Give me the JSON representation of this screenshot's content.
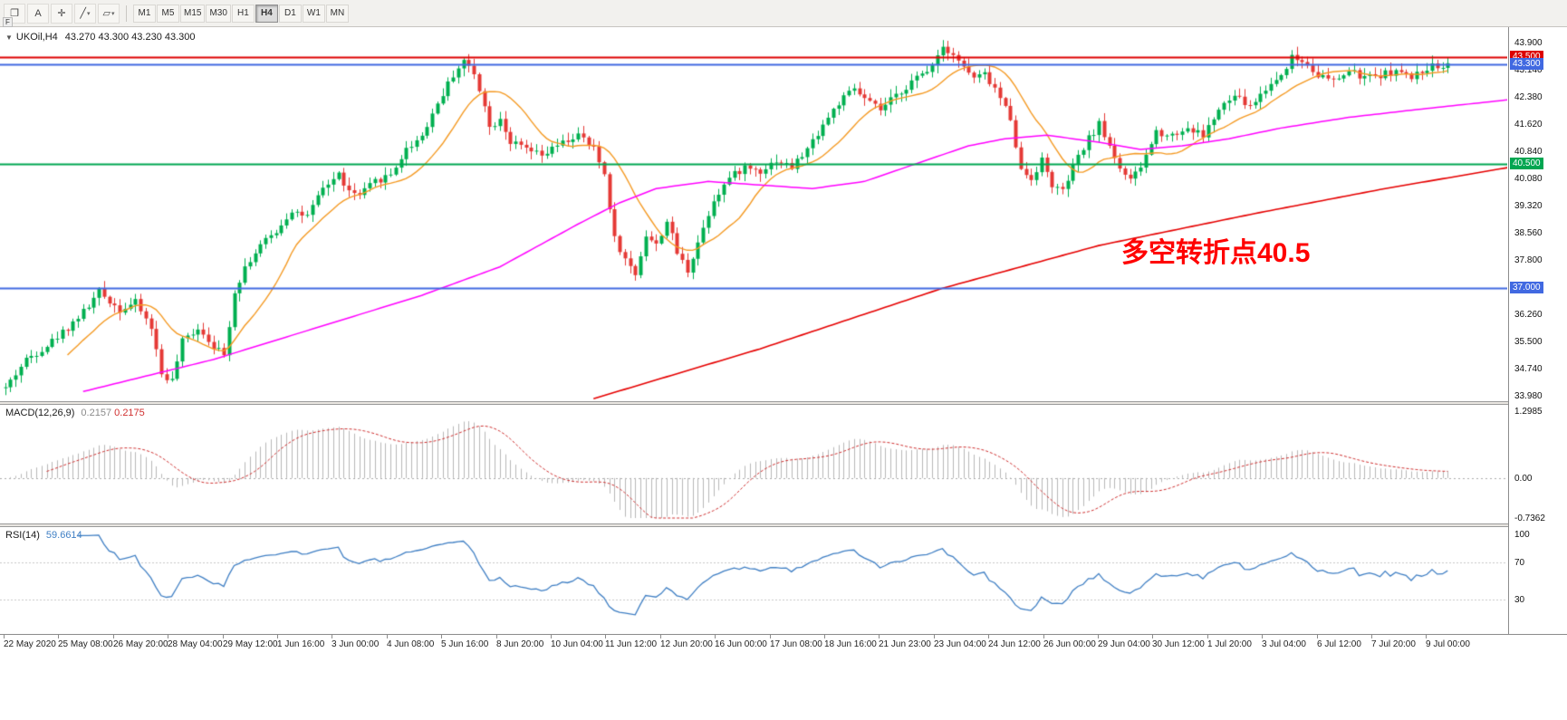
{
  "icons": {
    "cascade": "❐",
    "crosshair": "✛",
    "trendline": "╱",
    "shapes": "▱",
    "caret": "▾",
    "chart_arrow": "▼"
  },
  "toolbar": {
    "annotate_label": "A",
    "f_label": "F",
    "timeframes": [
      "M1",
      "M5",
      "M15",
      "M30",
      "H1",
      "H4",
      "D1",
      "W1",
      "MN"
    ],
    "active_timeframe": "H4"
  },
  "info_line": {
    "symbol": "UKOil,H4",
    "ohlc_text": "43.270 43.300 43.230 43.300"
  },
  "annotation": {
    "text": "多空转折点40.5",
    "color": "#ff0000"
  },
  "price_scale": {
    "labels": [
      "43.900",
      "43.140",
      "42.380",
      "41.620",
      "40.840",
      "40.080",
      "39.320",
      "38.560",
      "37.800",
      "36.260",
      "35.500",
      "34.740",
      "33.980"
    ],
    "badges": [
      {
        "text": "43.500",
        "price": 43.5,
        "bg": "#dd0000",
        "fg": "#ffffff"
      },
      {
        "text": "43.300",
        "price": 43.3,
        "bg": "#4169e1",
        "fg": "#ffffff"
      },
      {
        "text": "40.500",
        "price": 40.5,
        "bg": "#00a651",
        "fg": "#ffffff"
      },
      {
        "text": "37.000",
        "price": 37.0,
        "bg": "#4169e1",
        "fg": "#ffffff"
      }
    ]
  },
  "macd_panel": {
    "label": "MACD(12,26,9)",
    "value_main": "0.2157",
    "value_signal": "0.2175",
    "scale": [
      "1.2985",
      "0.00",
      "-0.7362"
    ],
    "range": [
      -0.7362,
      1.2985
    ]
  },
  "rsi_panel": {
    "label": "RSI(14)",
    "value": "59.6614",
    "scale": [
      "100",
      "70",
      "30"
    ],
    "levels": [
      70,
      30
    ]
  },
  "time_axis": {
    "labels": [
      "22 May 2020",
      "25 May 08:00",
      "26 May 20:00",
      "28 May 04:00",
      "29 May 12:00",
      "1 Jun 16:00",
      "3 Jun 00:00",
      "4 Jun 08:00",
      "5 Jun 16:00",
      "8 Jun 20:00",
      "10 Jun 04:00",
      "11 Jun 12:00",
      "12 Jun 20:00",
      "16 Jun 00:00",
      "17 Jun 08:00",
      "18 Jun 16:00",
      "21 Jun 23:00",
      "23 Jun 04:00",
      "24 Jun 12:00",
      "26 Jun 00:00",
      "29 Jun 04:00",
      "30 Jun 12:00",
      "1 Jul 20:00",
      "3 Jul 04:00",
      "6 Jul 12:00",
      "7 Jul 20:00",
      "9 Jul 00:00"
    ]
  },
  "colors": {
    "candle_up": "#00b050",
    "candle_down": "#e53935",
    "ma_fast": "#f59a23",
    "ma_mid": "#ff00ff",
    "ma_slow": "#e60000",
    "macd_hist": "#b8b8b8",
    "macd_signal": "#d03030",
    "rsi_line": "#3f7fc4",
    "level_dash": "#c8c8c8"
  },
  "chart_data": {
    "type": "candlestick",
    "symbol": "UKOil",
    "timeframe": "H4",
    "candle_count": 278,
    "price_axis_visible_range": [
      33.98,
      43.9
    ],
    "last_close": 43.3,
    "hlines": [
      {
        "price": 43.5,
        "color": "#dd0000",
        "width": 2
      },
      {
        "price": 43.3,
        "color": "#4169e1",
        "width": 2
      },
      {
        "price": 40.5,
        "color": "#00a651",
        "width": 2
      },
      {
        "price": 37.0,
        "color": "#4169e1",
        "width": 2
      }
    ],
    "close_path": [
      [
        0,
        34.2
      ],
      [
        4,
        35.0
      ],
      [
        8,
        35.4
      ],
      [
        12,
        35.9
      ],
      [
        16,
        36.5
      ],
      [
        18,
        36.9
      ],
      [
        22,
        36.4
      ],
      [
        25,
        36.6
      ],
      [
        28,
        35.9
      ],
      [
        30,
        34.6
      ],
      [
        32,
        34.4
      ],
      [
        34,
        35.5
      ],
      [
        37,
        35.9
      ],
      [
        40,
        35.4
      ],
      [
        42,
        35.1
      ],
      [
        44,
        36.9
      ],
      [
        46,
        37.6
      ],
      [
        49,
        38.2
      ],
      [
        52,
        38.6
      ],
      [
        55,
        39.2
      ],
      [
        58,
        39.0
      ],
      [
        61,
        39.8
      ],
      [
        64,
        40.2
      ],
      [
        66,
        39.7
      ],
      [
        68,
        39.6
      ],
      [
        71,
        40.0
      ],
      [
        74,
        40.2
      ],
      [
        77,
        40.9
      ],
      [
        80,
        41.3
      ],
      [
        83,
        42.2
      ],
      [
        86,
        43.0
      ],
      [
        88,
        43.4
      ],
      [
        90,
        43.0
      ],
      [
        92,
        42.2
      ],
      [
        93,
        41.5
      ],
      [
        95,
        41.8
      ],
      [
        97,
        41.1
      ],
      [
        100,
        40.9
      ],
      [
        103,
        40.7
      ],
      [
        106,
        41.0
      ],
      [
        110,
        41.3
      ],
      [
        113,
        40.9
      ],
      [
        115,
        40.2
      ],
      [
        117,
        38.4
      ],
      [
        119,
        37.8
      ],
      [
        121,
        37.4
      ],
      [
        123,
        38.5
      ],
      [
        125,
        38.2
      ],
      [
        127,
        38.9
      ],
      [
        129,
        38.0
      ],
      [
        131,
        37.5
      ],
      [
        133,
        38.3
      ],
      [
        136,
        39.5
      ],
      [
        139,
        40.1
      ],
      [
        142,
        40.4
      ],
      [
        145,
        40.3
      ],
      [
        148,
        40.6
      ],
      [
        151,
        40.4
      ],
      [
        154,
        40.9
      ],
      [
        157,
        41.6
      ],
      [
        160,
        42.2
      ],
      [
        163,
        42.6
      ],
      [
        165,
        42.3
      ],
      [
        168,
        42.0
      ],
      [
        171,
        42.4
      ],
      [
        174,
        42.8
      ],
      [
        177,
        43.1
      ],
      [
        180,
        43.8
      ],
      [
        182,
        43.6
      ],
      [
        184,
        43.2
      ],
      [
        186,
        42.9
      ],
      [
        188,
        43.0
      ],
      [
        190,
        42.6
      ],
      [
        193,
        41.8
      ],
      [
        195,
        40.3
      ],
      [
        197,
        40.1
      ],
      [
        199,
        40.6
      ],
      [
        201,
        39.9
      ],
      [
        203,
        39.7
      ],
      [
        205,
        40.4
      ],
      [
        208,
        41.2
      ],
      [
        210,
        41.6
      ],
      [
        212,
        41.0
      ],
      [
        214,
        40.4
      ],
      [
        216,
        40.0
      ],
      [
        218,
        40.4
      ],
      [
        221,
        41.4
      ],
      [
        224,
        41.3
      ],
      [
        227,
        41.5
      ],
      [
        230,
        41.3
      ],
      [
        233,
        42.0
      ],
      [
        236,
        42.4
      ],
      [
        239,
        42.1
      ],
      [
        242,
        42.6
      ],
      [
        245,
        43.0
      ],
      [
        247,
        43.5
      ],
      [
        250,
        43.3
      ],
      [
        252,
        43.0
      ],
      [
        255,
        42.8
      ],
      [
        258,
        43.1
      ],
      [
        261,
        42.9
      ],
      [
        264,
        43.0
      ],
      [
        267,
        43.1
      ],
      [
        270,
        42.9
      ],
      [
        273,
        43.2
      ],
      [
        277,
        43.3
      ]
    ],
    "ma_fast_period": 13,
    "ma_mid_path": [
      [
        15,
        34.1
      ],
      [
        40,
        35.0
      ],
      [
        60,
        35.9
      ],
      [
        80,
        36.8
      ],
      [
        95,
        37.6
      ],
      [
        110,
        38.8
      ],
      [
        118,
        39.4
      ],
      [
        125,
        39.8
      ],
      [
        135,
        40.0
      ],
      [
        145,
        39.9
      ],
      [
        155,
        39.8
      ],
      [
        165,
        40.0
      ],
      [
        175,
        40.5
      ],
      [
        185,
        41.0
      ],
      [
        192,
        41.2
      ],
      [
        200,
        41.3
      ],
      [
        210,
        41.1
      ],
      [
        218,
        40.9
      ],
      [
        226,
        41.0
      ],
      [
        235,
        41.2
      ],
      [
        245,
        41.5
      ],
      [
        258,
        41.8
      ],
      [
        270,
        42.0
      ],
      [
        289,
        42.3
      ]
    ],
    "ma_slow_path": [
      [
        113,
        33.9
      ],
      [
        145,
        35.3
      ],
      [
        180,
        37.0
      ],
      [
        210,
        38.2
      ],
      [
        240,
        39.1
      ],
      [
        265,
        39.8
      ],
      [
        289,
        40.4
      ]
    ],
    "indicators": {
      "macd": {
        "params": [
          12,
          26,
          9
        ],
        "current_main": 0.2157,
        "current_signal": 0.2175,
        "scale_max": 1.2985,
        "scale_min": -0.7362
      },
      "rsi": {
        "period": 14,
        "current": 59.6614,
        "levels": [
          70,
          30
        ]
      }
    }
  }
}
